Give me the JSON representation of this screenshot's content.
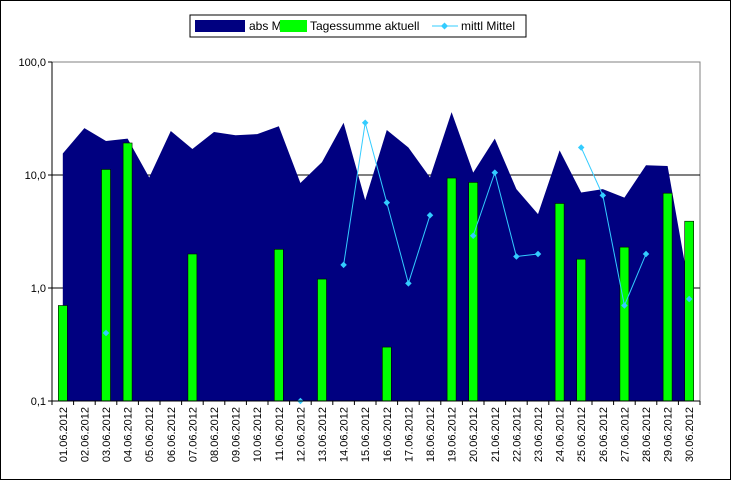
{
  "chart_data": {
    "type": "bar",
    "y_scale": "log",
    "ylim": [
      0.1,
      100
    ],
    "y_ticks": [
      "0,1",
      "1,0",
      "10,0",
      "100,0"
    ],
    "y_tick_values": [
      0.1,
      1,
      10,
      100
    ],
    "grid": "horizontal major lines",
    "legend_position": "top-center",
    "categories": [
      "01.06.2012",
      "02.06.2012",
      "03.06.2012",
      "04.06.2012",
      "05.06.2012",
      "06.06.2012",
      "07.06.2012",
      "08.06.2012",
      "09.06.2012",
      "10.06.2012",
      "11.06.2012",
      "12.06.2012",
      "13.06.2012",
      "14.06.2012",
      "15.06.2012",
      "16.06.2012",
      "17.06.2012",
      "18.06.2012",
      "19.06.2012",
      "20.06.2012",
      "21.06.2012",
      "22.06.2012",
      "23.06.2012",
      "24.06.2012",
      "25.06.2012",
      "26.06.2012",
      "27.06.2012",
      "28.06.2012",
      "29.06.2012",
      "30.06.2012"
    ],
    "series": [
      {
        "name": "abs Max",
        "kind": "area",
        "color": "#000080",
        "values": [
          15.5,
          26,
          20,
          21,
          9.5,
          24.5,
          17,
          24,
          22.5,
          23,
          27,
          8.5,
          13,
          29,
          6,
          25,
          17.5,
          9.5,
          36,
          10.5,
          21,
          7.5,
          4.5,
          16.5,
          7,
          7.5,
          6.3,
          12.2,
          12,
          1
        ]
      },
      {
        "name": "Tagessumme aktuell",
        "kind": "bar",
        "color": "#00ff00",
        "values": [
          0.7,
          null,
          11.2,
          19.2,
          null,
          null,
          2.0,
          null,
          null,
          null,
          2.2,
          null,
          1.2,
          null,
          null,
          0.3,
          null,
          null,
          9.4,
          8.6,
          null,
          null,
          null,
          5.6,
          1.8,
          null,
          2.3,
          null,
          6.9,
          3.9
        ]
      },
      {
        "name": "mittl Mittel",
        "kind": "line",
        "color": "#33ccff",
        "values": [
          null,
          null,
          0.4,
          null,
          null,
          null,
          null,
          null,
          null,
          null,
          null,
          0.1,
          null,
          1.6,
          29,
          5.7,
          1.1,
          4.4,
          null,
          2.9,
          10.5,
          1.9,
          2.0,
          null,
          17.5,
          6.6,
          0.7,
          2.0,
          null,
          0.8
        ]
      }
    ]
  }
}
